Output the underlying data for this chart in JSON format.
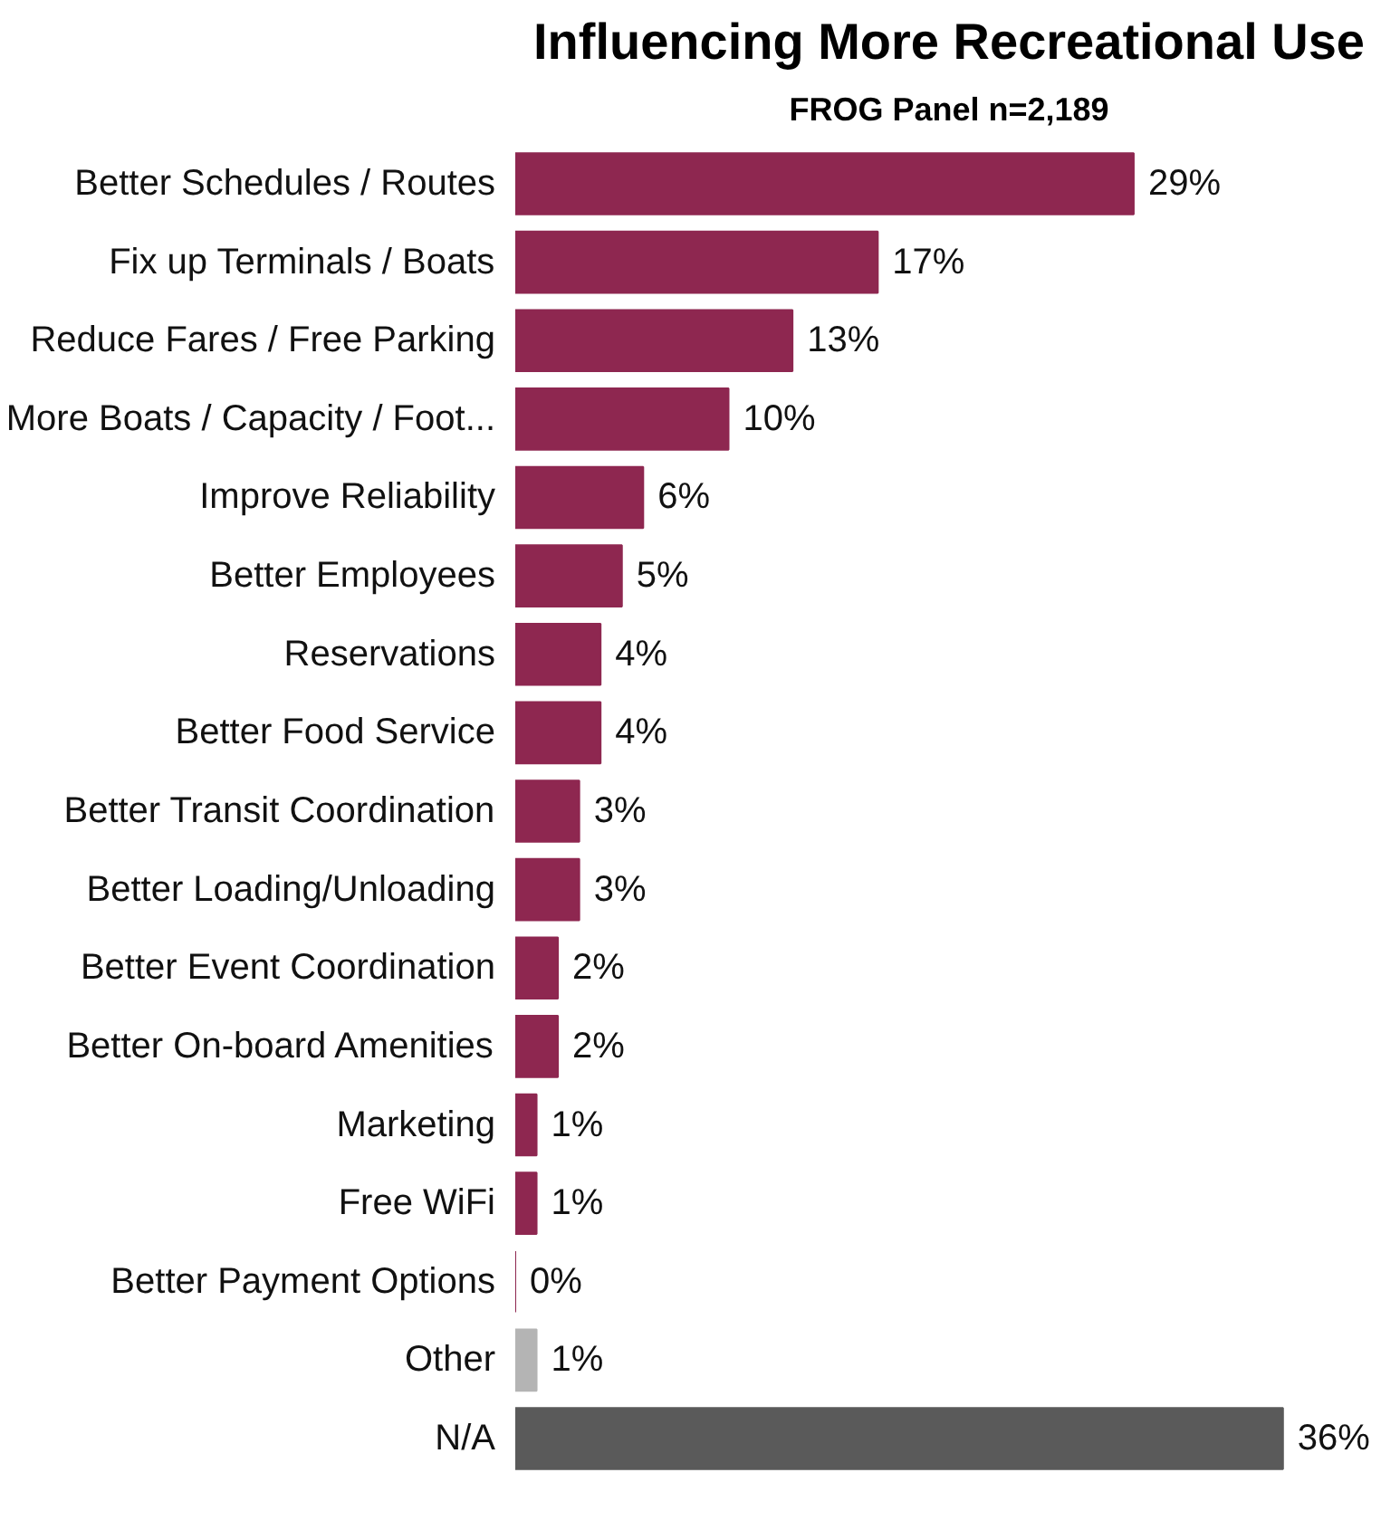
{
  "chart_data": {
    "type": "bar",
    "orientation": "horizontal",
    "title": "Influencing More Recreational Use",
    "subtitle": "FROG Panel n=2,189",
    "categories": [
      "Better Schedules / Routes",
      "Fix up Terminals / Boats",
      "Reduce Fares / Free Parking",
      "More Boats / Capacity / Foot...",
      "Improve Reliability",
      "Better Employees",
      "Reservations",
      "Better Food Service",
      "Better Transit Coordination",
      "Better Loading/Unloading",
      "Better Event Coordination",
      "Better On-board Amenities",
      "Marketing",
      "Free WiFi",
      "Better Payment Options",
      "Other",
      "N/A"
    ],
    "values": [
      29,
      17,
      13,
      10,
      6,
      5,
      4,
      4,
      3,
      3,
      2,
      2,
      1,
      1,
      0,
      1,
      36
    ],
    "value_labels": [
      "29%",
      "17%",
      "13%",
      "10%",
      "6%",
      "5%",
      "4%",
      "4%",
      "3%",
      "3%",
      "2%",
      "2%",
      "1%",
      "1%",
      "0%",
      "1%",
      "36%"
    ],
    "colors": [
      "#8e2750",
      "#8e2750",
      "#8e2750",
      "#8e2750",
      "#8e2750",
      "#8e2750",
      "#8e2750",
      "#8e2750",
      "#8e2750",
      "#8e2750",
      "#8e2750",
      "#8e2750",
      "#8e2750",
      "#8e2750",
      "#8e2750",
      "#b4b4b4",
      "#5a5a5a"
    ],
    "grid": false
  }
}
